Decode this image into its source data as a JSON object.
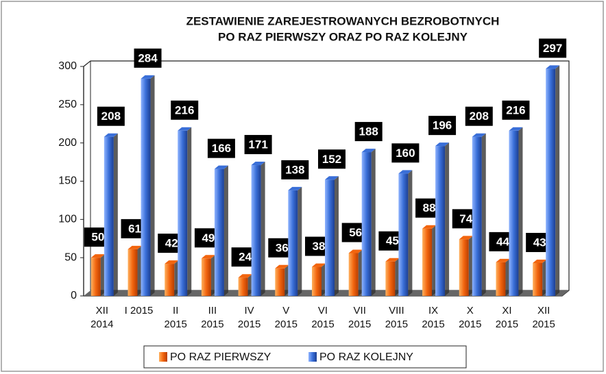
{
  "chart_data": {
    "type": "bar",
    "title": [
      "ZESTAWIENIE ZAREJESTROWANYCH BEZROBOTNYCH",
      "PO RAZ PIERWSZY ORAZ PO RAZ KOLEJNY"
    ],
    "categories": [
      [
        "XII",
        "2014"
      ],
      [
        "I 2015"
      ],
      [
        "II",
        "2015"
      ],
      [
        "III",
        "2015"
      ],
      [
        "IV",
        "2015"
      ],
      [
        "V",
        "2015"
      ],
      [
        "VI",
        "2015"
      ],
      [
        "VII",
        "2015"
      ],
      [
        "VIII",
        "2015"
      ],
      [
        "IX",
        "2015"
      ],
      [
        "X",
        "2015"
      ],
      [
        "XI",
        "2015"
      ],
      [
        "XII",
        "2015"
      ]
    ],
    "series": [
      {
        "name": "PO RAZ PIERWSZY",
        "color": "#f2650f",
        "values": [
          50,
          61,
          42,
          49,
          24,
          36,
          38,
          56,
          45,
          88,
          74,
          44,
          43
        ]
      },
      {
        "name": "PO RAZ KOLEJNY",
        "color": "#3a6fd8",
        "values": [
          208,
          284,
          216,
          166,
          171,
          138,
          152,
          188,
          160,
          196,
          208,
          216,
          297
        ]
      }
    ],
    "ylim": [
      0,
      300
    ],
    "yticks": [
      0,
      50,
      100,
      150,
      200,
      250,
      300
    ],
    "grid": false,
    "legend": "bottom"
  }
}
